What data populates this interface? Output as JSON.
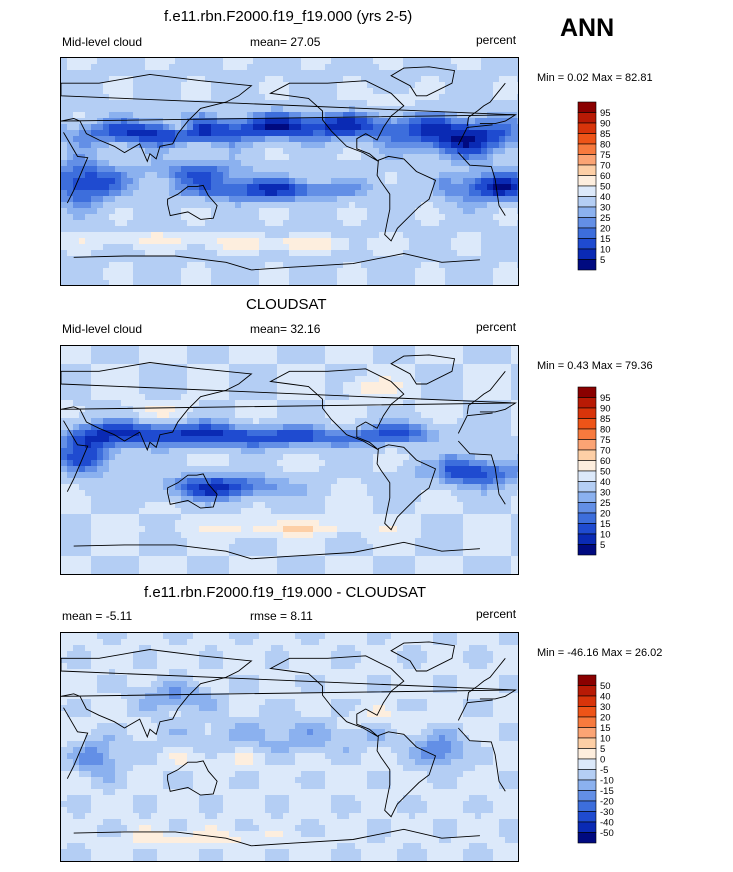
{
  "season": "ANN",
  "panels": [
    {
      "title": "f.e11.rbn.F2000.f19_f19.000 (yrs 2-5)",
      "left_label": "Mid-level cloud",
      "stat_label": "mean=  27.05",
      "units": "percent",
      "minmax": "Min =   0.02 Max =  82.81",
      "colorbar": {
        "labels": [
          "95",
          "90",
          "85",
          "80",
          "75",
          "70",
          "60",
          "50",
          "40",
          "30",
          "25",
          "20",
          "15",
          "10",
          "5"
        ],
        "colors": [
          "#8a0000",
          "#b81a05",
          "#d8340a",
          "#ee5418",
          "#f77a3e",
          "#fba474",
          "#fdcfa6",
          "#fdeede",
          "#dce9fa",
          "#b4cef4",
          "#8bb1ef",
          "#638fe6",
          "#3d6edc",
          "#1f4bd0",
          "#0a2ab4",
          "#000a80"
        ]
      },
      "field": "model"
    },
    {
      "title": "CLOUDSAT",
      "left_label": "Mid-level cloud",
      "stat_label": "mean=  32.16",
      "units": "percent",
      "minmax": "Min =   0.43 Max =  79.36",
      "colorbar": {
        "labels": [
          "95",
          "90",
          "85",
          "80",
          "75",
          "70",
          "60",
          "50",
          "40",
          "30",
          "25",
          "20",
          "15",
          "10",
          "5"
        ],
        "colors": [
          "#8a0000",
          "#b81a05",
          "#d8340a",
          "#ee5418",
          "#f77a3e",
          "#fba474",
          "#fdcfa6",
          "#fdeede",
          "#dce9fa",
          "#b4cef4",
          "#8bb1ef",
          "#638fe6",
          "#3d6edc",
          "#1f4bd0",
          "#0a2ab4",
          "#000a80"
        ]
      },
      "field": "obs"
    },
    {
      "title": "f.e11.rbn.F2000.f19_f19.000 - CLOUDSAT",
      "left_label": "mean =  -5.11",
      "stat_label": "rmse =   8.11",
      "units": "percent",
      "minmax": "Min = -46.16 Max =  26.02",
      "colorbar": {
        "labels": [
          "50",
          "40",
          "30",
          "20",
          "15",
          "10",
          "5",
          "0",
          "-5",
          "-10",
          "-15",
          "-20",
          "-30",
          "-40",
          "-50"
        ],
        "colors": [
          "#8a0000",
          "#b81a05",
          "#d8340a",
          "#ee5418",
          "#f77a3e",
          "#fba474",
          "#fdcfa6",
          "#fdeede",
          "#dce9fa",
          "#b4cef4",
          "#8bb1ef",
          "#638fe6",
          "#3d6edc",
          "#1f4bd0",
          "#0a2ab4",
          "#000a80"
        ]
      },
      "field": "diff"
    }
  ]
}
